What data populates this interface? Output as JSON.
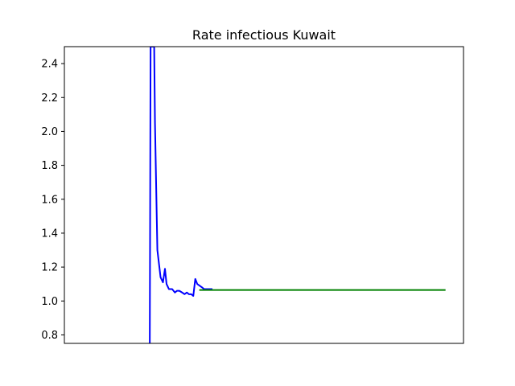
{
  "chart_data": {
    "type": "line",
    "title": "Rate infectious Kuwait",
    "xlabel": "",
    "ylabel": "",
    "ylim": [
      0.75,
      2.5
    ],
    "xlim": [
      0,
      100
    ],
    "yticks": [
      0.8,
      1.0,
      1.2,
      1.4,
      1.6,
      1.8,
      2.0,
      2.2,
      2.4
    ],
    "ytick_labels": [
      "0.8",
      "1.0",
      "1.2",
      "1.4",
      "1.6",
      "1.8",
      "2.0",
      "2.2",
      "2.4"
    ],
    "xticks": [],
    "grid": false,
    "series": [
      {
        "color": "#0000ff",
        "x": [
          21.4,
          21.6,
          22.5,
          22.7,
          23.3,
          23.7,
          24.1,
          24.7,
          25.2,
          25.6,
          26.2,
          27.0,
          27.7,
          28.2,
          28.8,
          29.5,
          30.1,
          30.7,
          31.2,
          31.8,
          32.3,
          32.8,
          33.3,
          33.9,
          34.5,
          35.0,
          35.6,
          36.1,
          36.6,
          37.1
        ],
        "y": [
          0.75,
          2.5,
          2.5,
          2.05,
          1.3,
          1.22,
          1.14,
          1.11,
          1.19,
          1.1,
          1.07,
          1.07,
          1.05,
          1.06,
          1.06,
          1.05,
          1.04,
          1.05,
          1.04,
          1.04,
          1.03,
          1.13,
          1.1,
          1.09,
          1.08,
          1.07,
          1.07,
          1.07,
          1.07,
          1.07
        ]
      },
      {
        "color": "#008000",
        "x": [
          33.8,
          95.5
        ],
        "y": [
          1.065,
          1.065
        ]
      }
    ]
  }
}
